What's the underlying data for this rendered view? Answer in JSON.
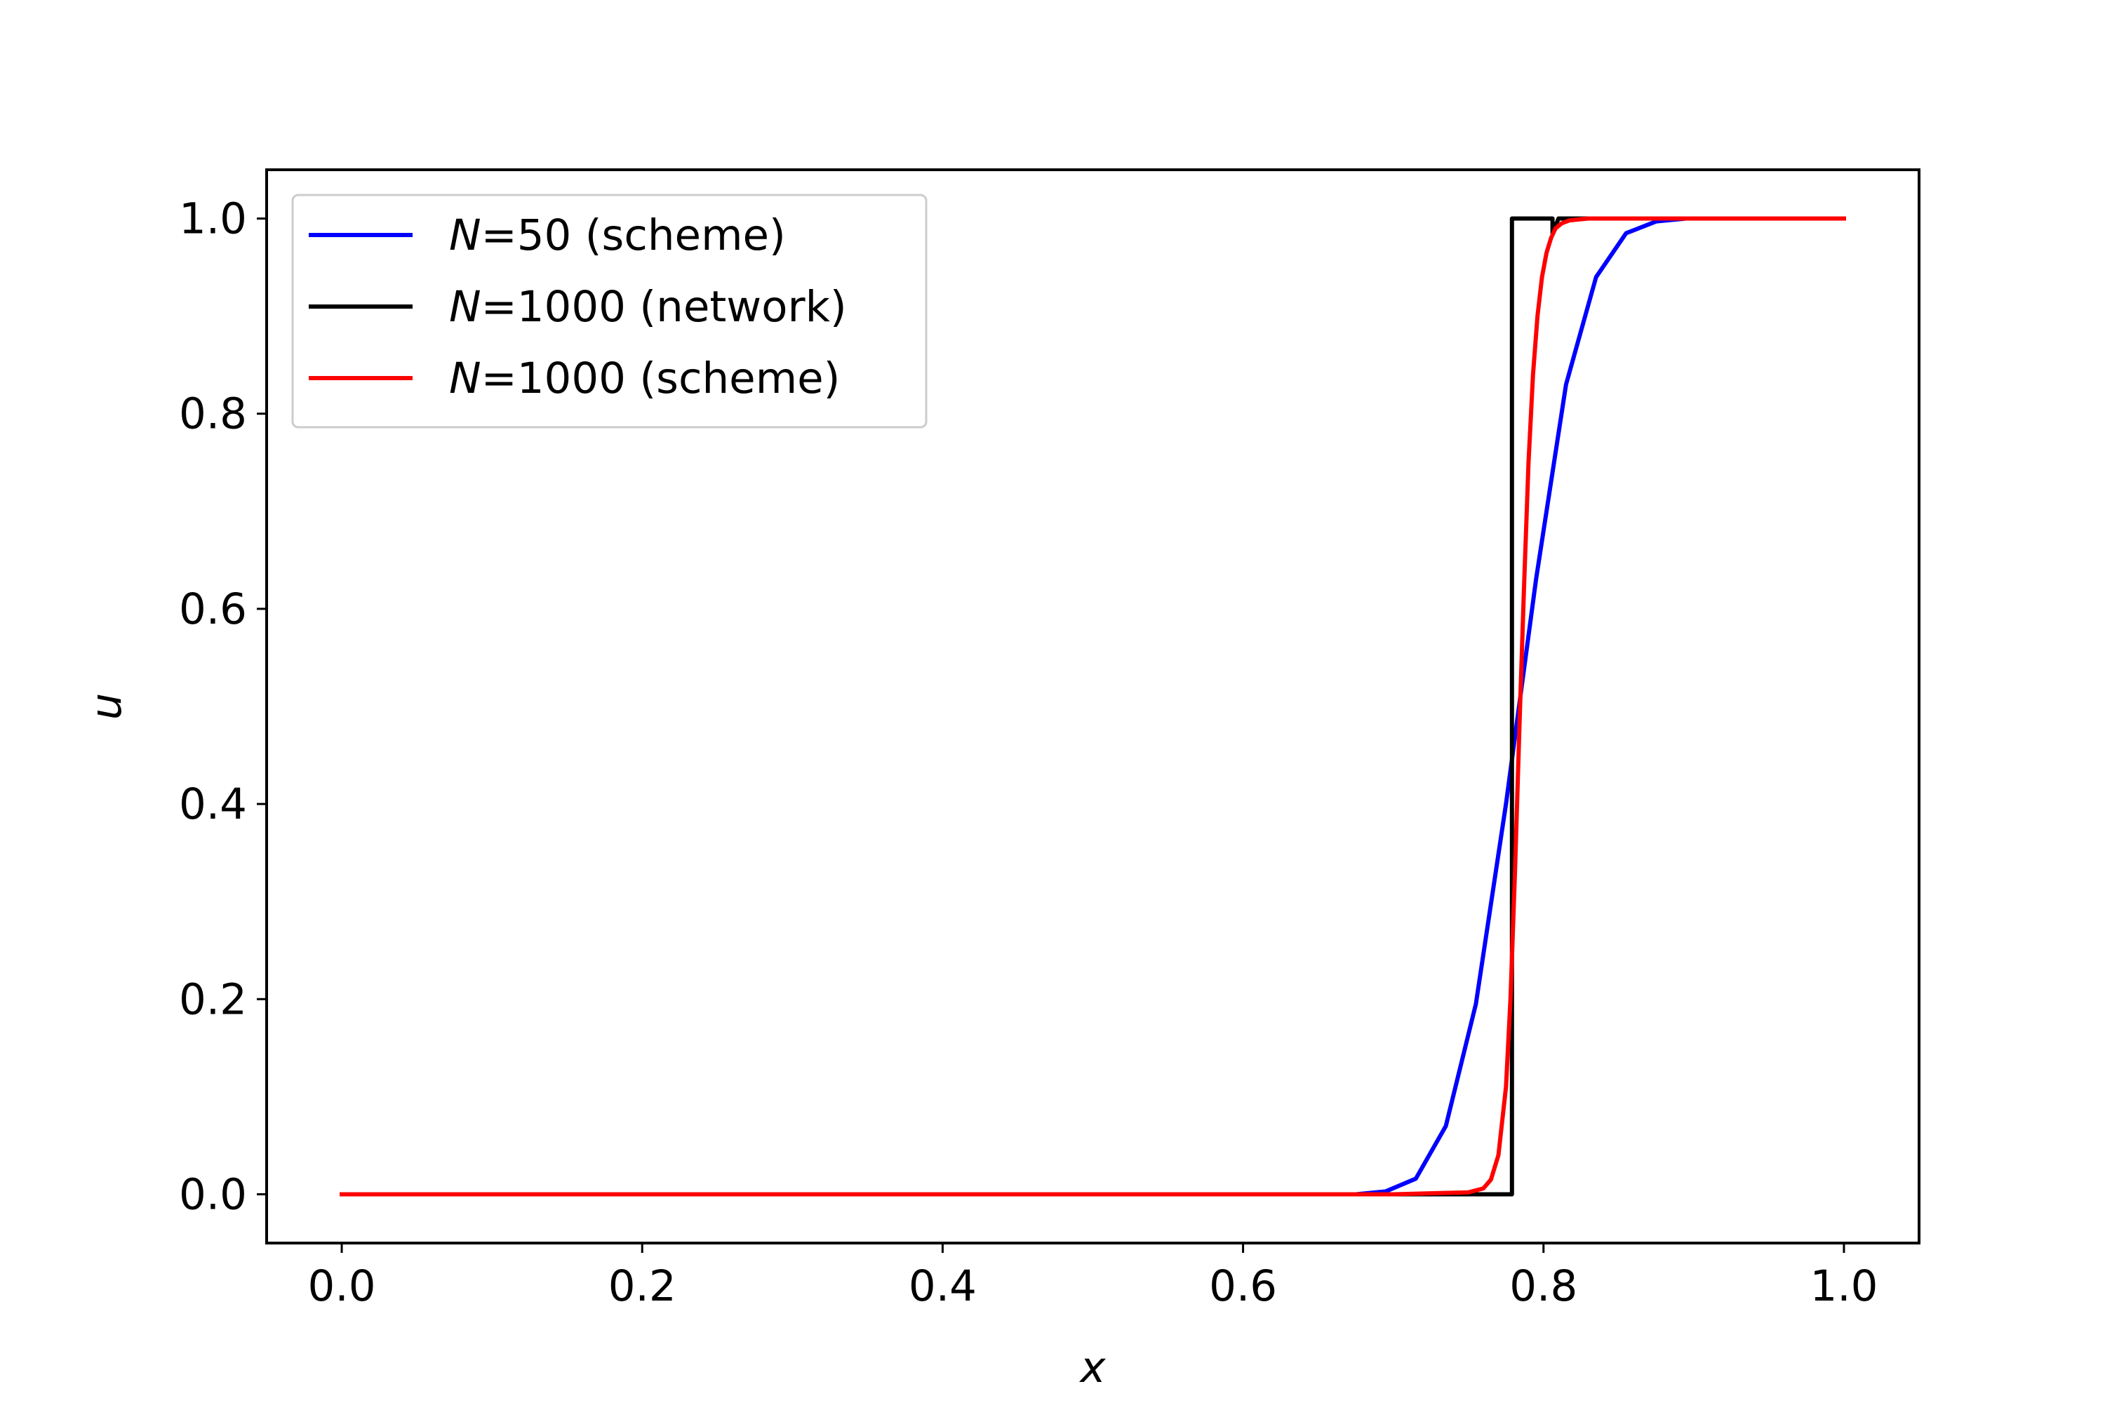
{
  "chart_data": {
    "type": "line",
    "title": "",
    "xlabel": "x",
    "ylabel": "u",
    "xlim": [
      -0.05,
      1.05
    ],
    "ylim": [
      -0.05,
      1.05
    ],
    "xticks": [
      0.0,
      0.2,
      0.4,
      0.6,
      0.8,
      1.0
    ],
    "xtick_labels": [
      "0.0",
      "0.2",
      "0.4",
      "0.6",
      "0.8",
      "1.0"
    ],
    "yticks": [
      0.0,
      0.2,
      0.4,
      0.6,
      0.8,
      1.0
    ],
    "ytick_labels": [
      "0.0",
      "0.2",
      "0.4",
      "0.6",
      "0.8",
      "1.0"
    ],
    "grid": false,
    "legend_position": "top-left",
    "series": [
      {
        "name": "N=50 (scheme)",
        "legend_prefix": "N",
        "legend_suffix": "=50 (scheme)",
        "color": "#0000ff",
        "x": [
          0.0,
          0.1,
          0.2,
          0.3,
          0.4,
          0.5,
          0.6,
          0.65,
          0.675,
          0.695,
          0.715,
          0.735,
          0.755,
          0.775,
          0.795,
          0.815,
          0.835,
          0.855,
          0.875,
          0.895,
          0.92,
          0.95,
          1.0
        ],
        "y": [
          0.0,
          0.0,
          0.0,
          0.0,
          0.0,
          0.0,
          0.0,
          0.0,
          0.0,
          0.003,
          0.016,
          0.07,
          0.195,
          0.4,
          0.63,
          0.83,
          0.94,
          0.985,
          0.997,
          1.0,
          1.0,
          1.0,
          1.0
        ]
      },
      {
        "name": "N=1000 (network)",
        "legend_prefix": "N",
        "legend_suffix": "=1000 (network)",
        "color": "#000000",
        "x": [
          0.0,
          0.1,
          0.2,
          0.3,
          0.4,
          0.5,
          0.6,
          0.7,
          0.75,
          0.779,
          0.779,
          0.806,
          0.806,
          0.81,
          0.85,
          0.9,
          1.0
        ],
        "y": [
          0.0,
          0.0,
          0.0,
          0.0,
          0.0,
          0.0,
          0.0,
          0.0,
          0.0,
          0.0,
          1.0,
          1.0,
          0.985,
          1.0,
          1.0,
          1.0,
          1.0
        ]
      },
      {
        "name": "N=1000 (scheme)",
        "legend_prefix": "N",
        "legend_suffix": "=1000 (scheme)",
        "color": "#ff0000",
        "x": [
          0.0,
          0.1,
          0.2,
          0.3,
          0.4,
          0.5,
          0.6,
          0.7,
          0.75,
          0.76,
          0.765,
          0.77,
          0.775,
          0.778,
          0.781,
          0.784,
          0.787,
          0.79,
          0.793,
          0.796,
          0.799,
          0.802,
          0.805,
          0.808,
          0.812,
          0.817,
          0.823,
          0.83,
          0.85,
          0.9,
          1.0
        ],
        "y": [
          0.0,
          0.0,
          0.0,
          0.0,
          0.0,
          0.0,
          0.0,
          0.0,
          0.002,
          0.006,
          0.015,
          0.04,
          0.11,
          0.2,
          0.33,
          0.48,
          0.62,
          0.75,
          0.84,
          0.9,
          0.94,
          0.965,
          0.98,
          0.99,
          0.995,
          0.998,
          0.999,
          1.0,
          1.0,
          1.0,
          1.0
        ]
      }
    ]
  }
}
